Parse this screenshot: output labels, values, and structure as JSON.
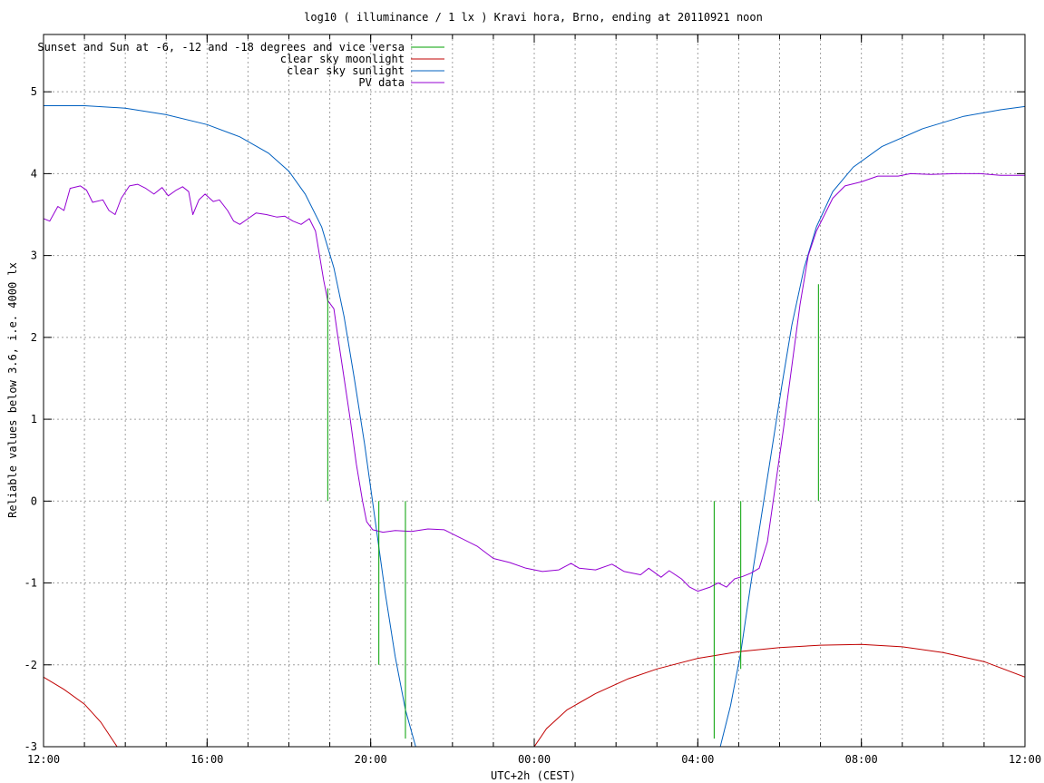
{
  "chart_data": {
    "type": "line",
    "title": "log10 ( illuminance / 1 lx ) Kravi hora, Brno, ending at 20110921 noon",
    "xlabel": "UTC+2h (CEST)",
    "ylabel": "Reliable values below 3.6, i.e. 4000 lx",
    "x_unit": "hours since 12:00 (2011-09-20)",
    "xlim": [
      0,
      24
    ],
    "ylim": [
      -3,
      5.7
    ],
    "x_ticks": [
      {
        "value": 0,
        "label": "12:00"
      },
      {
        "value": 4,
        "label": "16:00"
      },
      {
        "value": 8,
        "label": "20:00"
      },
      {
        "value": 12,
        "label": "00:00"
      },
      {
        "value": 16,
        "label": "04:00"
      },
      {
        "value": 20,
        "label": "08:00"
      },
      {
        "value": 24,
        "label": "12:00"
      }
    ],
    "y_ticks": [
      {
        "value": -3,
        "label": "-3"
      },
      {
        "value": -2,
        "label": "-2"
      },
      {
        "value": -1,
        "label": "-1"
      },
      {
        "value": 0,
        "label": "0"
      },
      {
        "value": 1,
        "label": "1"
      },
      {
        "value": 2,
        "label": "2"
      },
      {
        "value": 3,
        "label": "3"
      },
      {
        "value": 4,
        "label": "4"
      },
      {
        "value": 5,
        "label": "5"
      }
    ],
    "grid": true,
    "legend_position": "top-left",
    "series": [
      {
        "name": "Sunset and Sun at -6, -12 and -18 degrees and vice versa",
        "color": "#00a000",
        "kind": "impulses",
        "points": [
          [
            6.95,
            2.6
          ],
          [
            8.2,
            -2.0
          ],
          [
            8.85,
            -2.9
          ],
          [
            16.4,
            -2.9
          ],
          [
            17.05,
            -2.05
          ],
          [
            18.3,
            0.0
          ],
          [
            18.95,
            2.65
          ]
        ]
      },
      {
        "name": "clear sky moonlight",
        "color": "#c00000",
        "kind": "line",
        "segments": [
          [
            [
              0,
              -2.15
            ],
            [
              0.5,
              -2.3
            ],
            [
              1.0,
              -2.48
            ],
            [
              1.4,
              -2.7
            ],
            [
              1.8,
              -3.0
            ]
          ],
          [
            [
              12.0,
              -3.0
            ],
            [
              12.3,
              -2.78
            ],
            [
              12.8,
              -2.55
            ],
            [
              13.5,
              -2.35
            ],
            [
              14.3,
              -2.17
            ],
            [
              15.0,
              -2.05
            ],
            [
              16.0,
              -1.92
            ],
            [
              17.0,
              -1.84
            ],
            [
              18.0,
              -1.79
            ],
            [
              19.0,
              -1.76
            ],
            [
              20.0,
              -1.75
            ],
            [
              21.0,
              -1.78
            ],
            [
              22.0,
              -1.85
            ],
            [
              23.0,
              -1.96
            ],
            [
              24.0,
              -2.15
            ]
          ]
        ]
      },
      {
        "name": "clear sky sunlight",
        "color": "#0060c0",
        "kind": "line",
        "segments": [
          [
            [
              0,
              4.83
            ],
            [
              1.0,
              4.83
            ],
            [
              2.0,
              4.8
            ],
            [
              3.0,
              4.72
            ],
            [
              4.0,
              4.6
            ],
            [
              4.8,
              4.45
            ],
            [
              5.5,
              4.25
            ],
            [
              6.0,
              4.03
            ],
            [
              6.4,
              3.75
            ],
            [
              6.8,
              3.35
            ],
            [
              7.1,
              2.85
            ],
            [
              7.35,
              2.25
            ],
            [
              7.6,
              1.5
            ],
            [
              7.85,
              0.7
            ],
            [
              8.1,
              -0.2
            ],
            [
              8.35,
              -1.1
            ],
            [
              8.6,
              -1.9
            ],
            [
              8.85,
              -2.55
            ],
            [
              9.1,
              -3.0
            ]
          ],
          [
            [
              16.55,
              -3.0
            ],
            [
              16.8,
              -2.5
            ],
            [
              17.05,
              -1.85
            ],
            [
              17.3,
              -1.0
            ],
            [
              17.55,
              -0.2
            ],
            [
              17.8,
              0.6
            ],
            [
              18.05,
              1.4
            ],
            [
              18.3,
              2.15
            ],
            [
              18.6,
              2.85
            ],
            [
              18.9,
              3.35
            ],
            [
              19.3,
              3.78
            ],
            [
              19.8,
              4.08
            ],
            [
              20.5,
              4.33
            ],
            [
              21.5,
              4.55
            ],
            [
              22.5,
              4.7
            ],
            [
              23.4,
              4.78
            ],
            [
              24.0,
              4.82
            ]
          ]
        ]
      },
      {
        "name": "PV data",
        "color": "#9400d3",
        "kind": "line",
        "points": [
          [
            0,
            3.45
          ],
          [
            0.15,
            3.42
          ],
          [
            0.35,
            3.6
          ],
          [
            0.5,
            3.55
          ],
          [
            0.65,
            3.82
          ],
          [
            0.9,
            3.85
          ],
          [
            1.05,
            3.8
          ],
          [
            1.2,
            3.65
          ],
          [
            1.45,
            3.68
          ],
          [
            1.6,
            3.55
          ],
          [
            1.75,
            3.5
          ],
          [
            1.9,
            3.7
          ],
          [
            2.1,
            3.85
          ],
          [
            2.3,
            3.87
          ],
          [
            2.5,
            3.82
          ],
          [
            2.7,
            3.75
          ],
          [
            2.9,
            3.83
          ],
          [
            3.05,
            3.73
          ],
          [
            3.25,
            3.8
          ],
          [
            3.4,
            3.84
          ],
          [
            3.55,
            3.78
          ],
          [
            3.65,
            3.5
          ],
          [
            3.8,
            3.68
          ],
          [
            3.95,
            3.75
          ],
          [
            4.15,
            3.66
          ],
          [
            4.3,
            3.68
          ],
          [
            4.5,
            3.55
          ],
          [
            4.65,
            3.42
          ],
          [
            4.8,
            3.38
          ],
          [
            5.0,
            3.45
          ],
          [
            5.2,
            3.52
          ],
          [
            5.45,
            3.5
          ],
          [
            5.7,
            3.47
          ],
          [
            5.9,
            3.48
          ],
          [
            6.1,
            3.42
          ],
          [
            6.3,
            3.38
          ],
          [
            6.5,
            3.45
          ],
          [
            6.65,
            3.3
          ],
          [
            6.75,
            3.0
          ],
          [
            6.85,
            2.7
          ],
          [
            6.95,
            2.45
          ],
          [
            7.1,
            2.35
          ],
          [
            7.2,
            2.0
          ],
          [
            7.35,
            1.5
          ],
          [
            7.5,
            1.0
          ],
          [
            7.65,
            0.45
          ],
          [
            7.8,
            0.0
          ],
          [
            7.9,
            -0.25
          ],
          [
            8.05,
            -0.35
          ],
          [
            8.3,
            -0.38
          ],
          [
            8.6,
            -0.36
          ],
          [
            9.0,
            -0.37
          ],
          [
            9.4,
            -0.34
          ],
          [
            9.8,
            -0.35
          ],
          [
            10.2,
            -0.45
          ],
          [
            10.6,
            -0.55
          ],
          [
            11.0,
            -0.7
          ],
          [
            11.4,
            -0.75
          ],
          [
            11.8,
            -0.82
          ],
          [
            12.2,
            -0.86
          ],
          [
            12.6,
            -0.84
          ],
          [
            12.9,
            -0.76
          ],
          [
            13.1,
            -0.82
          ],
          [
            13.5,
            -0.84
          ],
          [
            13.9,
            -0.77
          ],
          [
            14.2,
            -0.86
          ],
          [
            14.6,
            -0.9
          ],
          [
            14.8,
            -0.82
          ],
          [
            15.1,
            -0.93
          ],
          [
            15.3,
            -0.85
          ],
          [
            15.6,
            -0.95
          ],
          [
            15.8,
            -1.05
          ],
          [
            16.0,
            -1.1
          ],
          [
            16.3,
            -1.05
          ],
          [
            16.5,
            -1.0
          ],
          [
            16.7,
            -1.05
          ],
          [
            16.9,
            -0.95
          ],
          [
            17.1,
            -0.92
          ],
          [
            17.3,
            -0.88
          ],
          [
            17.5,
            -0.82
          ],
          [
            17.7,
            -0.5
          ],
          [
            17.9,
            0.2
          ],
          [
            18.1,
            0.9
          ],
          [
            18.3,
            1.65
          ],
          [
            18.5,
            2.4
          ],
          [
            18.7,
            3.0
          ],
          [
            18.9,
            3.3
          ],
          [
            19.1,
            3.5
          ],
          [
            19.3,
            3.7
          ],
          [
            19.6,
            3.85
          ],
          [
            20.0,
            3.9
          ],
          [
            20.4,
            3.97
          ],
          [
            20.9,
            3.97
          ],
          [
            21.2,
            4.0
          ],
          [
            21.7,
            3.99
          ],
          [
            22.3,
            4.0
          ],
          [
            22.9,
            4.0
          ],
          [
            23.4,
            3.98
          ],
          [
            24.0,
            3.98
          ]
        ]
      }
    ]
  }
}
